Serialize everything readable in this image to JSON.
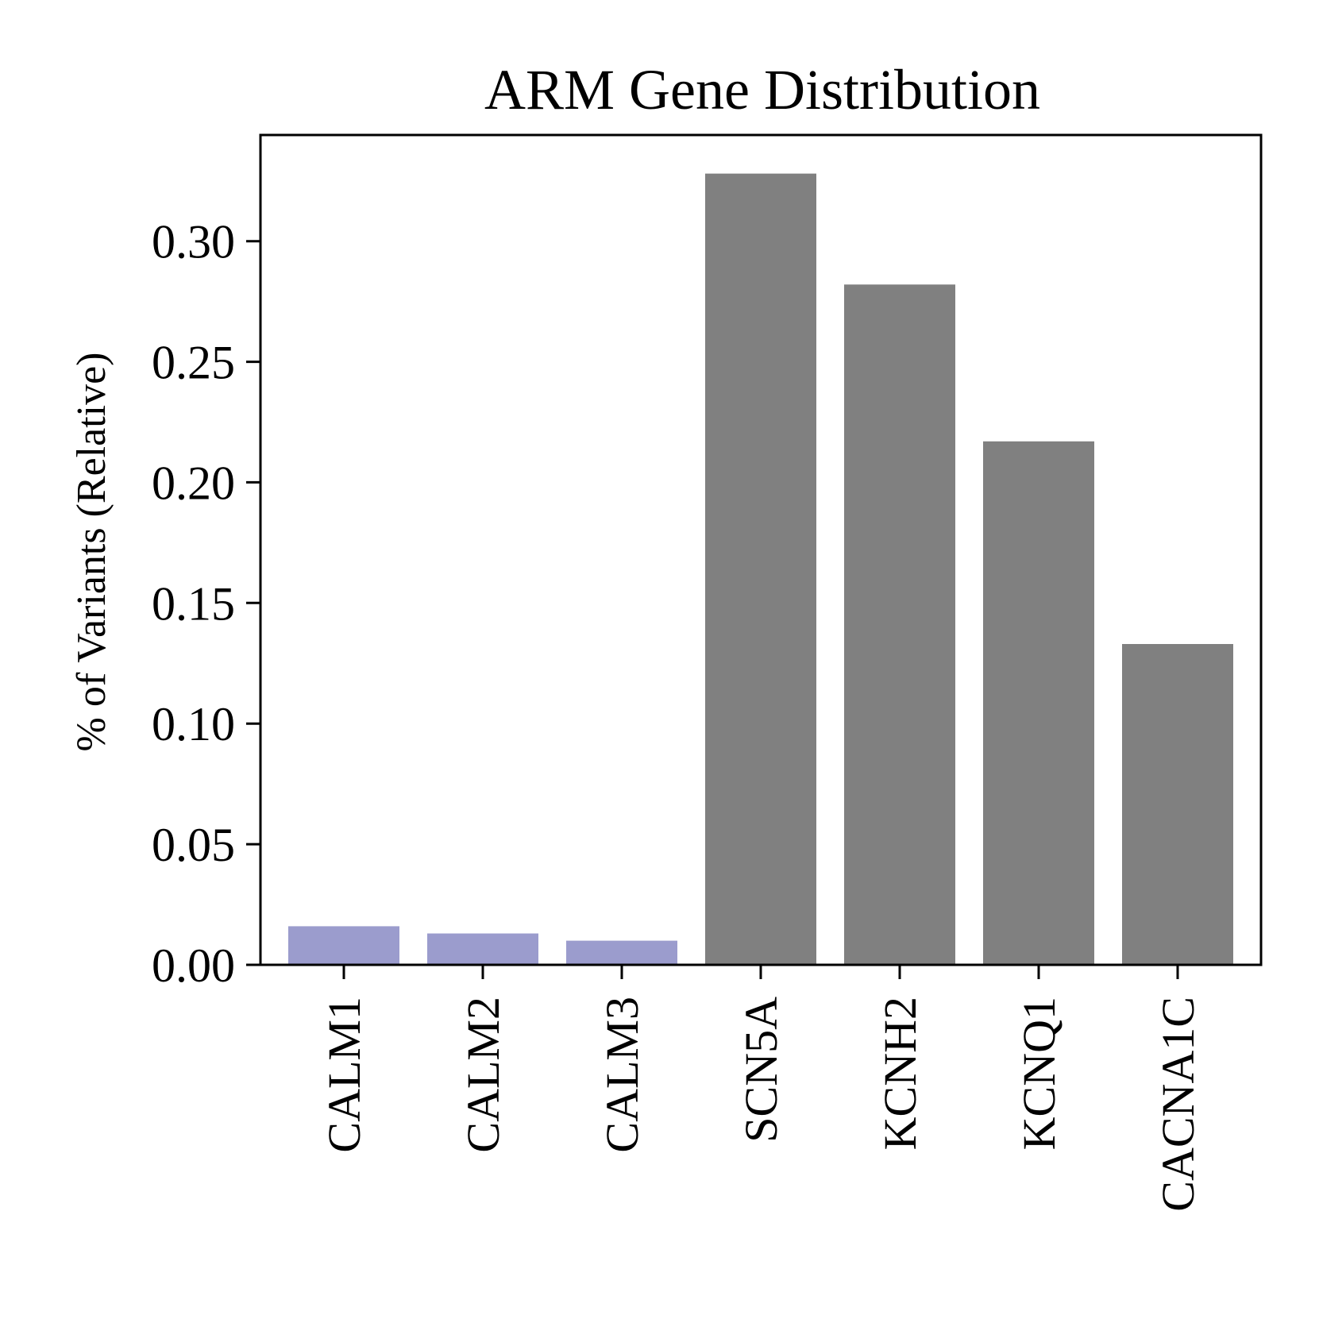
{
  "chart_data": {
    "type": "bar",
    "title": "ARM Gene Distribution",
    "xlabel": "",
    "ylabel": "% of Variants (Relative)",
    "categories": [
      "CALM1",
      "CALM2",
      "CALM3",
      "SCN5A",
      "KCNH2",
      "KCNQ1",
      "CACNA1C"
    ],
    "values": [
      0.016,
      0.013,
      0.01,
      0.328,
      0.282,
      0.217,
      0.133
    ],
    "bar_colors": [
      "#9b9ccd",
      "#9b9ccd",
      "#9b9ccd",
      "#808080",
      "#808080",
      "#808080",
      "#808080"
    ],
    "ylim": [
      0,
      0.344
    ],
    "yticks": [
      0.0,
      0.05,
      0.1,
      0.15,
      0.2,
      0.25,
      0.3
    ],
    "ytick_labels": [
      "0.00",
      "0.05",
      "0.10",
      "0.15",
      "0.20",
      "0.25",
      "0.30"
    ],
    "grid": false,
    "legend": "none"
  }
}
